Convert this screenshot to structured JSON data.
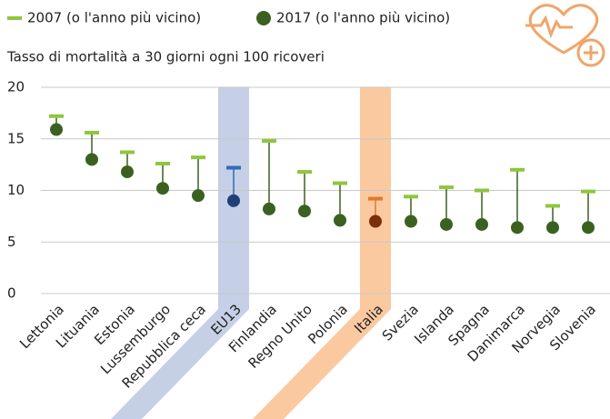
{
  "chart_data": {
    "type": "dot-range",
    "subtitle": "Tasso di mortalità a 30 giorni ogni 100 ricoveri",
    "categories": [
      "Lettonia",
      "Lituania",
      "Estonia",
      "Lussemburgo",
      "Repubblica ceca",
      "EU13",
      "Finlandia",
      "Regno Unito",
      "Polonia",
      "Italia",
      "Svezia",
      "Islanda",
      "Spagna",
      "Danimarca",
      "Norvegia",
      "Slovenia"
    ],
    "series": [
      {
        "name": "2007 (o l'anno più vicino)",
        "color": "#8dc63f",
        "colors": [
          null,
          null,
          null,
          null,
          null,
          "#2f6db5",
          null,
          null,
          null,
          "#e07a2a",
          null,
          null,
          null,
          null,
          null,
          null
        ],
        "values": [
          17.2,
          15.6,
          13.7,
          12.6,
          13.2,
          12.2,
          14.8,
          11.8,
          10.7,
          9.2,
          9.4,
          10.3,
          10.0,
          12.0,
          8.5,
          9.9
        ]
      },
      {
        "name": "2017 (o l'anno più vicino)",
        "color": "#3b6120",
        "colors": [
          null,
          null,
          null,
          null,
          null,
          "#1f3f7a",
          null,
          null,
          null,
          "#7a2e0a",
          null,
          null,
          null,
          null,
          null,
          null
        ],
        "values": [
          15.9,
          13.0,
          11.8,
          10.2,
          9.5,
          9.0,
          8.2,
          8.0,
          7.1,
          7.0,
          7.0,
          6.7,
          6.7,
          6.4,
          6.4,
          6.4
        ]
      }
    ],
    "band_colors": [
      null,
      null,
      null,
      null,
      null,
      "#c5d0e6",
      null,
      null,
      null,
      "#fbc9a0",
      null,
      null,
      null,
      null,
      null,
      null
    ],
    "ylim": [
      0,
      20
    ],
    "yticks": [
      0,
      5,
      10,
      15,
      20
    ],
    "grid": true
  }
}
